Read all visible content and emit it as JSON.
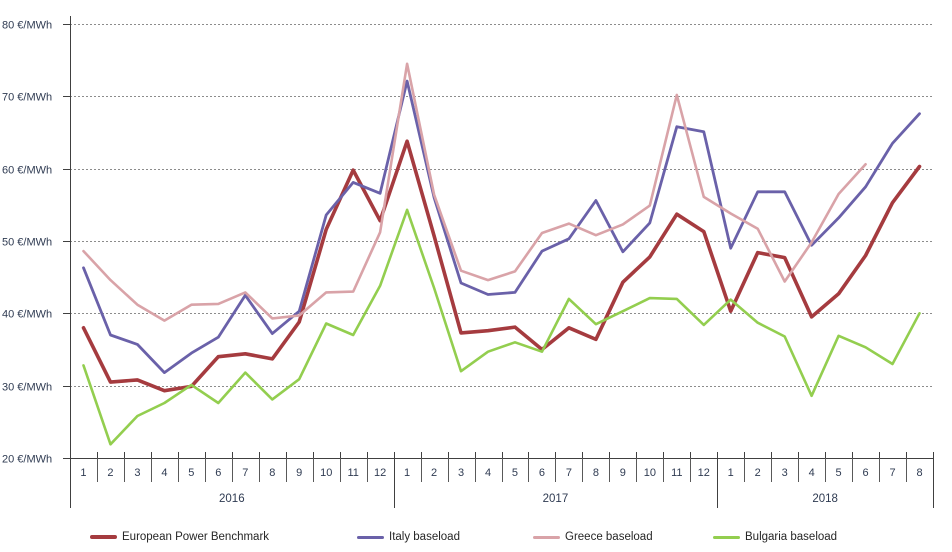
{
  "chart_data": {
    "type": "line",
    "unit": "€/MWh",
    "grid": "horizontal-dashed",
    "legend_position": "bottom",
    "y_axis": {
      "min": 20,
      "max": 80,
      "step": 10,
      "tick_labels": [
        "80 €/MWh",
        "70 €/MWh",
        "60 €/MWh",
        "50 €/MWh",
        "40 €/MWh",
        "30 €/MWh",
        "20 €/MWh"
      ]
    },
    "x_axis": {
      "years": [
        {
          "label": "2016",
          "months": [
            "1",
            "2",
            "3",
            "4",
            "5",
            "6",
            "7",
            "8",
            "9",
            "10",
            "11",
            "12"
          ]
        },
        {
          "label": "2017",
          "months": [
            "1",
            "2",
            "3",
            "4",
            "5",
            "6",
            "7",
            "8",
            "9",
            "10",
            "11",
            "12"
          ]
        },
        {
          "label": "2018",
          "months": [
            "1",
            "2",
            "3",
            "4",
            "5",
            "6",
            "7",
            "8"
          ]
        }
      ]
    },
    "series": [
      {
        "name": "European Power Benchmark",
        "color": "#A53B3F",
        "width": 3.6,
        "values": [
          38.0,
          30.5,
          30.8,
          29.3,
          29.9,
          34.0,
          34.4,
          33.7,
          38.8,
          51.6,
          59.8,
          52.8,
          63.8,
          50.7,
          37.3,
          37.6,
          38.1,
          35.0,
          38.0,
          36.4,
          44.3,
          47.8,
          53.7,
          51.3,
          40.3,
          48.4,
          47.7,
          39.5,
          42.7,
          48.0,
          55.3,
          60.3
        ]
      },
      {
        "name": "Italy baseload",
        "color": "#6A61A9",
        "width": 2.8,
        "values": [
          46.3,
          37.0,
          35.7,
          31.8,
          34.5,
          36.7,
          42.5,
          37.2,
          40.3,
          53.6,
          58.1,
          56.6,
          72.1,
          56.0,
          44.2,
          42.6,
          42.9,
          48.6,
          50.3,
          55.6,
          48.5,
          52.5,
          65.8,
          65.1,
          49.0,
          56.8,
          56.8,
          49.4,
          53.2,
          57.5,
          63.5,
          67.6
        ]
      },
      {
        "name": "Greece baseload",
        "color": "#D9A3A8",
        "width": 2.6,
        "values": [
          48.6,
          44.6,
          41.2,
          39.0,
          41.2,
          41.3,
          42.9,
          39.3,
          39.7,
          42.9,
          43.0,
          51.2,
          74.5,
          56.4,
          45.9,
          44.6,
          45.8,
          51.1,
          52.4,
          50.8,
          52.3,
          54.9,
          70.2,
          56.1,
          53.8,
          51.7,
          44.4,
          49.8,
          56.5,
          60.6,
          null,
          null
        ]
      },
      {
        "name": "Bulgaria baseload",
        "color": "#93CE4F",
        "width": 2.6,
        "values": [
          32.8,
          21.9,
          25.8,
          27.6,
          30.1,
          27.6,
          31.8,
          28.1,
          30.9,
          38.6,
          37.0,
          43.8,
          54.3,
          43.5,
          32.0,
          34.7,
          36.0,
          34.7,
          42.0,
          38.5,
          40.3,
          42.1,
          42.0,
          38.4,
          41.9,
          38.7,
          36.8,
          28.6,
          36.9,
          35.3,
          33.0,
          40.0
        ]
      }
    ],
    "style": {
      "grid_color": "#8C8C8C",
      "axis_color": "#404040",
      "axis_text_color": "#2F3B52",
      "separator_color": "#595959"
    }
  },
  "legend": {
    "item_lefts": [
      90,
      357,
      533,
      713
    ]
  }
}
